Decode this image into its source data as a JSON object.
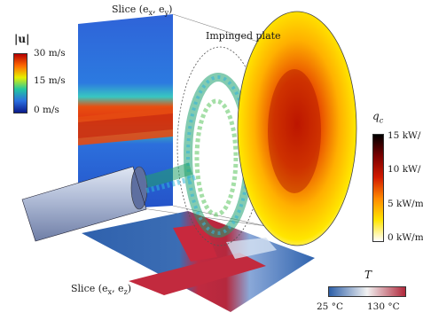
{
  "figure": {
    "slice_xy_label": "Slice (e",
    "slice_xy_sub1": "x",
    "slice_xy_mid": ", e",
    "slice_xy_sub2": "y",
    "slice_xy_end": ")",
    "slice_xz_label": "Slice (e",
    "slice_xz_sub1": "x",
    "slice_xz_mid": ", e",
    "slice_xz_sub2": "z",
    "slice_xz_end": ")",
    "plate_label": "Impinged plate"
  },
  "velocity_colorbar": {
    "symbol": "|u|",
    "ticks": [
      "30 m/s",
      "15 m/s",
      "0 m/s"
    ],
    "colors": [
      "#b50000",
      "#ff6a00",
      "#e6f000",
      "#22c7a0",
      "#2a6fe0",
      "#0a1a8a"
    ]
  },
  "heatflux_colorbar": {
    "symbol": "q",
    "symbol_sub": "c",
    "ticks": [
      "15 kW/",
      "10 kW/",
      "5 kW/m",
      "0 kW/m"
    ],
    "colors": [
      "#000000",
      "#7a0000",
      "#d21a00",
      "#ff8a00",
      "#ffe400",
      "#ffffff"
    ]
  },
  "temperature_colorbar": {
    "symbol": "T",
    "tick_min": "25 °C",
    "tick_max": "130 °C",
    "colors": [
      "#2d5fa8",
      "#f2f2f2",
      "#b0283b"
    ]
  }
}
